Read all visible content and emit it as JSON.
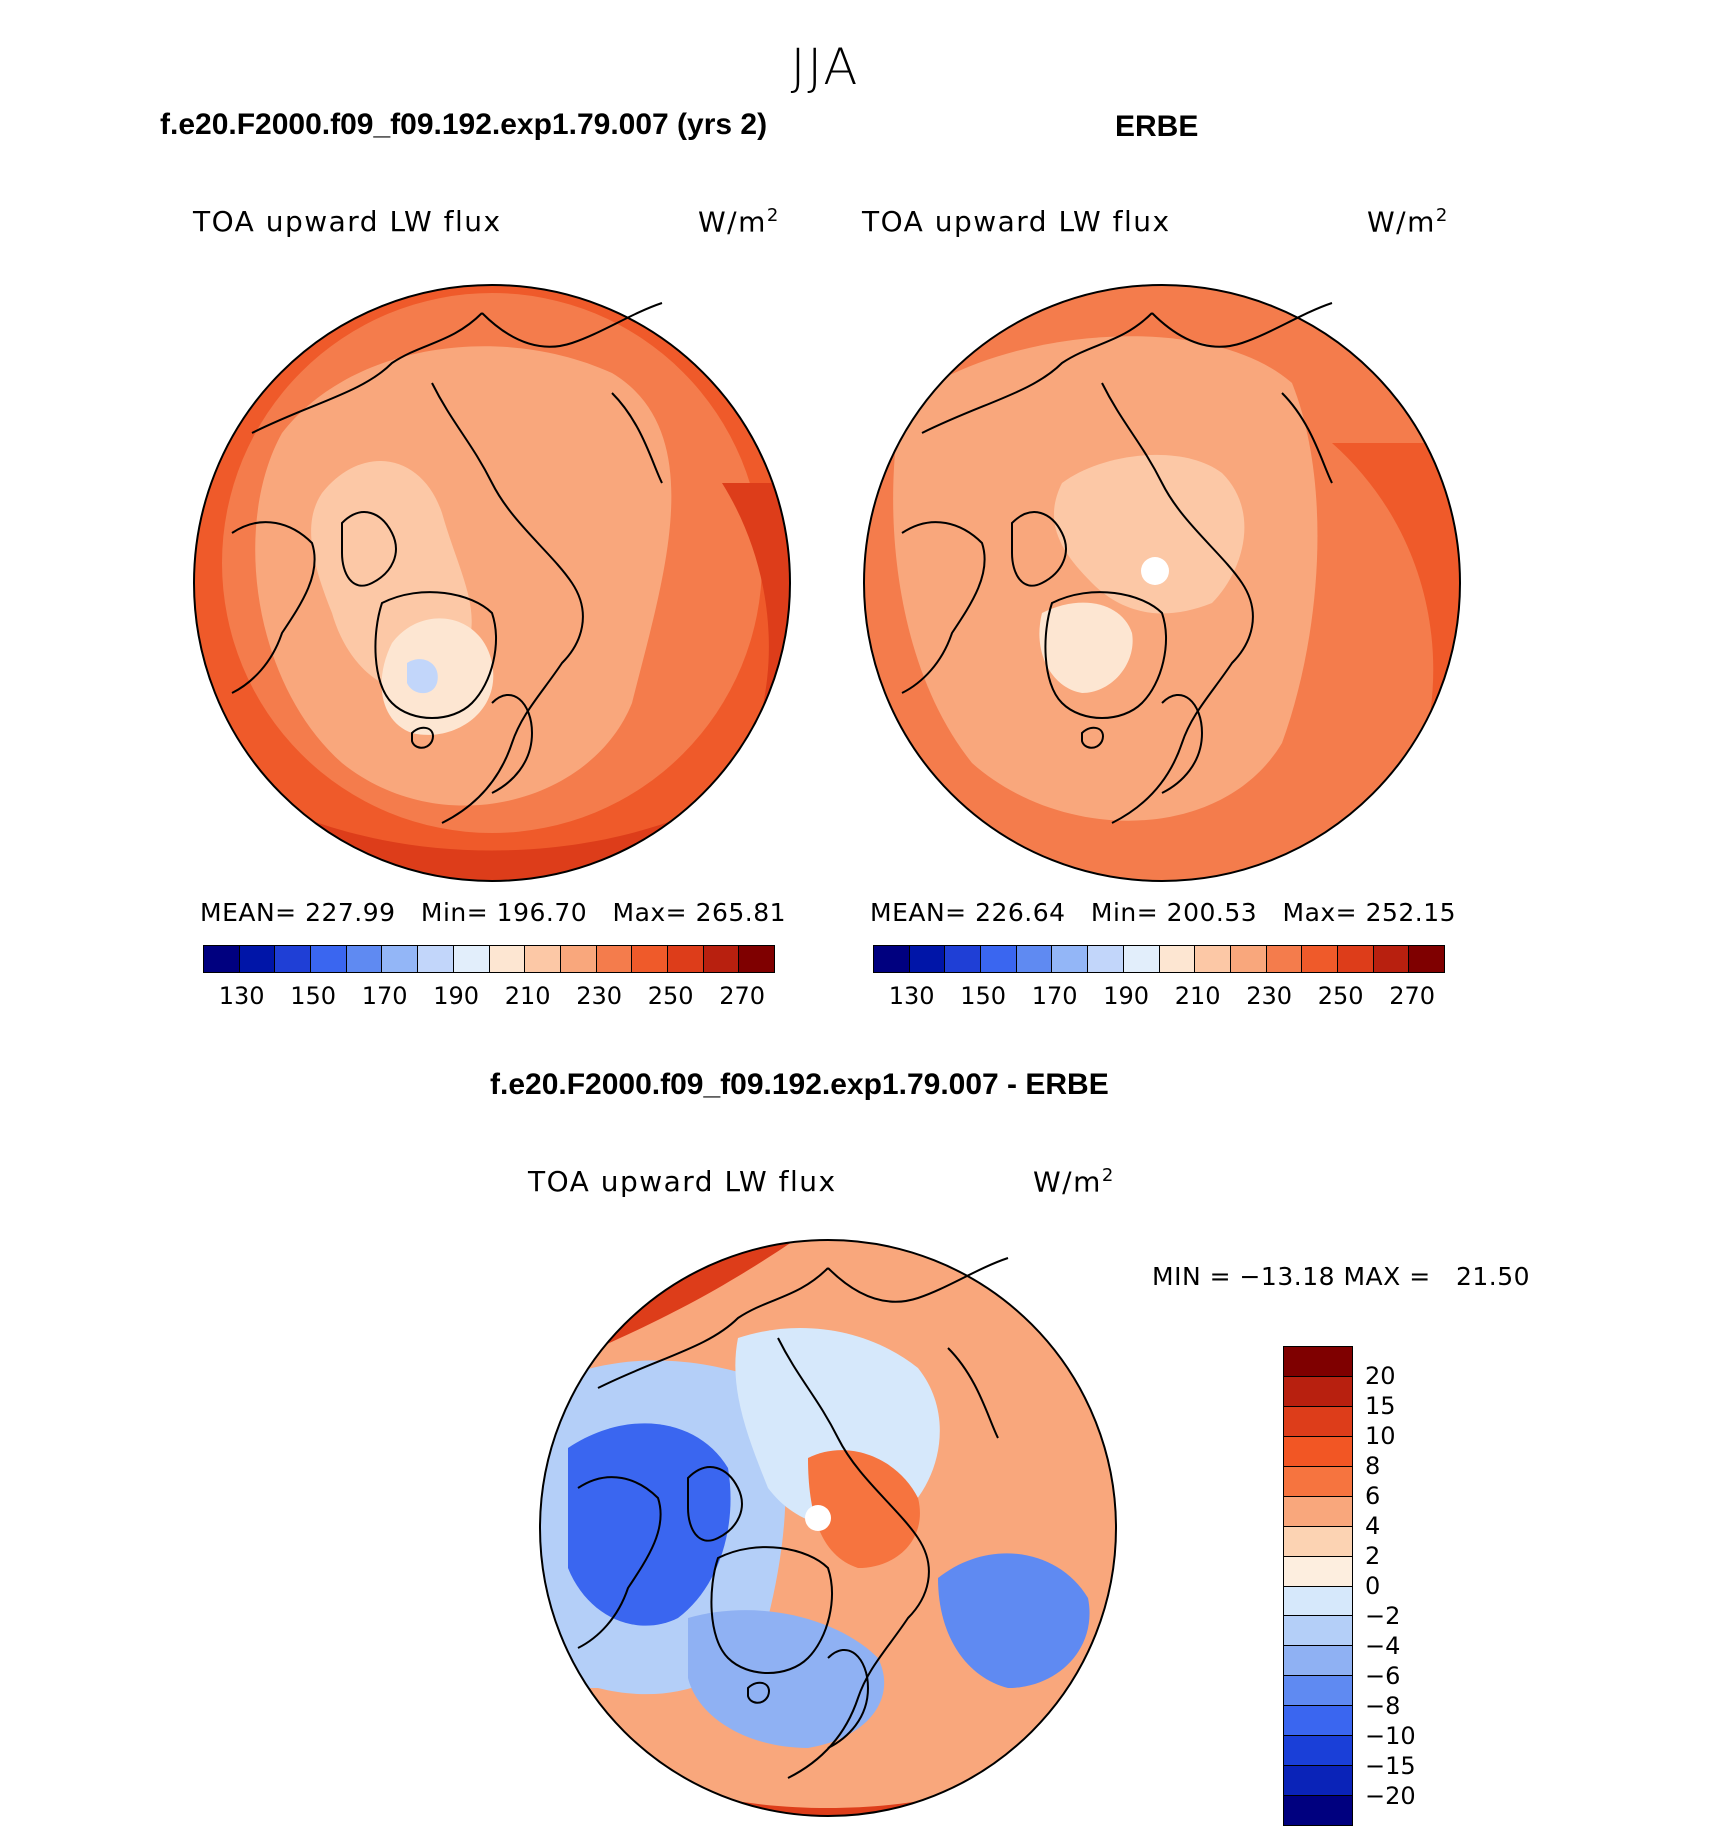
{
  "page_title": "JJA",
  "panels": [
    {
      "header": "f.e20.F2000.f09_f09.192.exp1.79.007 (yrs 2)",
      "variable": "TOA upward LW flux",
      "units_base": "W/m",
      "units_sup": "2",
      "stats": {
        "mean_label": "MEAN=",
        "mean": "227.99",
        "min_label": "Min=",
        "min": "196.70",
        "max_label": "Max=",
        "max": "265.81"
      },
      "colorbar_ticks": [
        "130",
        "150",
        "170",
        "190",
        "210",
        "230",
        "250",
        "270"
      ]
    },
    {
      "header": "ERBE",
      "variable": "TOA upward LW flux",
      "units_base": "W/m",
      "units_sup": "2",
      "stats": {
        "mean_label": "MEAN=",
        "mean": "226.64",
        "min_label": "Min=",
        "min": "200.53",
        "max_label": "Max=",
        "max": "252.15"
      },
      "colorbar_ticks": [
        "130",
        "150",
        "170",
        "190",
        "210",
        "230",
        "250",
        "270"
      ]
    }
  ],
  "difference": {
    "header": "f.e20.F2000.f09_f09.192.exp1.79.007 - ERBE",
    "variable": "TOA upward LW flux",
    "units_base": "W/m",
    "units_sup": "2",
    "minmax": "MIN = −13.18 MAX =   21.50",
    "colorbar_ticks": [
      "20",
      "15",
      "10",
      "8",
      "6",
      "4",
      "2",
      "0",
      "−2",
      "−4",
      "−6",
      "−8",
      "−10",
      "−15",
      "−20"
    ]
  },
  "colors": {
    "abs_scale": [
      "#00007f",
      "#0015a8",
      "#1f3fd6",
      "#3a66f0",
      "#5f8af2",
      "#93b6f7",
      "#c2d6fa",
      "#e2eefb",
      "#fde6d2",
      "#fcc8a6",
      "#f9a77c",
      "#f47c4c",
      "#ef5a2a",
      "#dd3d1a",
      "#b8200f",
      "#7f0000"
    ],
    "diff_scale": [
      "#7f0000",
      "#b8200f",
      "#dd3d1a",
      "#f25624",
      "#f6743f",
      "#f9a77c",
      "#fcd3b3",
      "#fdeedf",
      "#d6e8fb",
      "#b4cff8",
      "#8fb1f3",
      "#5f8af2",
      "#3a66f0",
      "#1a3fd8",
      "#0a23b8",
      "#00007f"
    ],
    "pole_white": "#ffffff",
    "coast": "#000000"
  }
}
